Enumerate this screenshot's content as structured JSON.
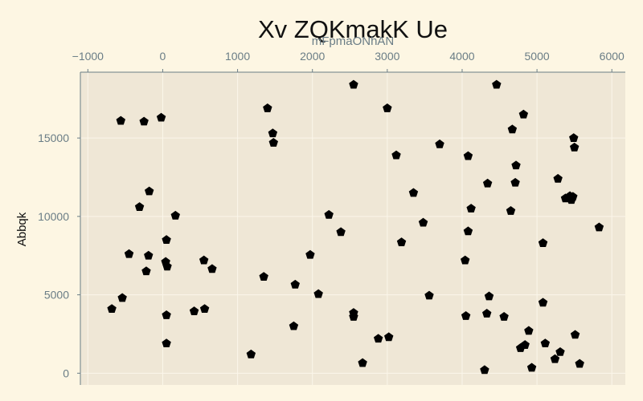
{
  "chart_data": {
    "type": "scatter",
    "title": "Xv  ZQKmakK  Ue",
    "xlabel": "mFpmaONhAN",
    "ylabel": "Abbqk",
    "xlim": [
      -1100,
      6180
    ],
    "ylim": [
      -750,
      19200
    ],
    "x_ticks": [
      -1000,
      0,
      1000,
      2000,
      3000,
      4000,
      5000,
      6000
    ],
    "y_ticks": [
      0,
      5000,
      10000,
      15000
    ],
    "x_axis_position": "top",
    "grid": true,
    "marker": "pentagon",
    "colors": {
      "background": "#fdf6e3",
      "plot_area": "#efe7d6",
      "grid": "#fbf6ea",
      "marker": "#000000",
      "tick_text": "#6a7d86"
    },
    "series": [
      {
        "points": [
          [
            -680,
            4100
          ],
          [
            -540,
            4800
          ],
          [
            -560,
            16100
          ],
          [
            -450,
            7600
          ],
          [
            -310,
            10600
          ],
          [
            -250,
            16050
          ],
          [
            -220,
            6500
          ],
          [
            -190,
            7500
          ],
          [
            -180,
            11600
          ],
          [
            -20,
            16300
          ],
          [
            40,
            7100
          ],
          [
            50,
            3700
          ],
          [
            50,
            1900
          ],
          [
            50,
            8500
          ],
          [
            60,
            6800
          ],
          [
            170,
            10050
          ],
          [
            420,
            3950
          ],
          [
            550,
            7200
          ],
          [
            560,
            4100
          ],
          [
            660,
            6650
          ],
          [
            1180,
            1200
          ],
          [
            1350,
            6150
          ],
          [
            1400,
            16900
          ],
          [
            1470,
            15300
          ],
          [
            1480,
            14700
          ],
          [
            1750,
            3000
          ],
          [
            1770,
            5650
          ],
          [
            1970,
            7550
          ],
          [
            2080,
            5050
          ],
          [
            2220,
            10100
          ],
          [
            2380,
            9000
          ],
          [
            2550,
            18400
          ],
          [
            2550,
            3850
          ],
          [
            2550,
            3600
          ],
          [
            2670,
            650
          ],
          [
            2880,
            2200
          ],
          [
            3000,
            16900
          ],
          [
            3020,
            2300
          ],
          [
            3120,
            13900
          ],
          [
            3190,
            8350
          ],
          [
            3350,
            11500
          ],
          [
            3480,
            9600
          ],
          [
            3560,
            4950
          ],
          [
            3700,
            14600
          ],
          [
            4040,
            7200
          ],
          [
            4050,
            3650
          ],
          [
            4080,
            13850
          ],
          [
            4080,
            9050
          ],
          [
            4120,
            10500
          ],
          [
            4300,
            200
          ],
          [
            4330,
            3800
          ],
          [
            4340,
            12100
          ],
          [
            4360,
            4900
          ],
          [
            4460,
            18400
          ],
          [
            4560,
            3600
          ],
          [
            4650,
            10350
          ],
          [
            4670,
            15550
          ],
          [
            4710,
            12150
          ],
          [
            4720,
            13250
          ],
          [
            4780,
            1600
          ],
          [
            4820,
            16500
          ],
          [
            4840,
            1800
          ],
          [
            4890,
            2700
          ],
          [
            4930,
            350
          ],
          [
            5080,
            8300
          ],
          [
            5080,
            4500
          ],
          [
            5110,
            1900
          ],
          [
            5240,
            900
          ],
          [
            5280,
            12400
          ],
          [
            5310,
            1350
          ],
          [
            5380,
            11150
          ],
          [
            5440,
            11300
          ],
          [
            5460,
            11050
          ],
          [
            5480,
            11250
          ],
          [
            5490,
            15000
          ],
          [
            5500,
            14400
          ],
          [
            5510,
            2450
          ],
          [
            5570,
            600
          ],
          [
            5830,
            9300
          ]
        ]
      }
    ]
  }
}
